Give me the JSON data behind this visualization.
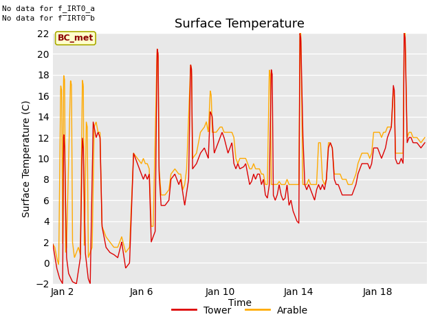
{
  "title": "Surface Temperature",
  "xlabel": "Time",
  "ylabel": "Surface Temperature (C)",
  "ylim": [
    -2,
    22
  ],
  "yticks": [
    -2,
    0,
    2,
    4,
    6,
    8,
    10,
    12,
    14,
    16,
    18,
    20,
    22
  ],
  "xtick_labels": [
    "Jan 2",
    "Jan 6",
    "Jan 10",
    "Jan 14",
    "Jan 18"
  ],
  "xtick_positions": [
    1,
    5,
    9,
    13,
    17
  ],
  "xlim": [
    0.5,
    19.5
  ],
  "no_data_text1": "No data for f_IRT0_a",
  "no_data_text2": "No data for f̅IRT0̅b",
  "bc_met_label": "BC_met",
  "tower_color": "#dd0000",
  "arable_color": "#ffaa00",
  "bg_color": "#e8e8e8",
  "legend_tower": "Tower",
  "legend_arable": "Arable",
  "title_fontsize": 13,
  "axis_fontsize": 10,
  "tick_fontsize": 10,
  "line_width": 1.0,
  "tower_kp": [
    [
      0.5,
      1.8
    ],
    [
      0.7,
      -0.5
    ],
    [
      0.85,
      -1.5
    ],
    [
      1.0,
      -2.0
    ],
    [
      1.05,
      12.5
    ],
    [
      1.1,
      11.0
    ],
    [
      1.2,
      0.5
    ],
    [
      1.3,
      -1.0
    ],
    [
      1.5,
      -1.8
    ],
    [
      1.7,
      -2.0
    ],
    [
      1.9,
      0.5
    ],
    [
      2.0,
      12.0
    ],
    [
      2.05,
      11.0
    ],
    [
      2.15,
      1.0
    ],
    [
      2.3,
      -1.5
    ],
    [
      2.4,
      -2.0
    ],
    [
      2.55,
      13.5
    ],
    [
      2.6,
      13.0
    ],
    [
      2.7,
      12.0
    ],
    [
      2.8,
      12.5
    ],
    [
      2.9,
      12.0
    ],
    [
      3.0,
      3.5
    ],
    [
      3.2,
      1.5
    ],
    [
      3.4,
      1.0
    ],
    [
      3.6,
      0.8
    ],
    [
      3.8,
      0.5
    ],
    [
      4.0,
      2.0
    ],
    [
      4.2,
      -0.5
    ],
    [
      4.4,
      0.0
    ],
    [
      4.6,
      10.5
    ],
    [
      4.7,
      10.0
    ],
    [
      4.8,
      9.5
    ],
    [
      5.0,
      8.5
    ],
    [
      5.1,
      8.0
    ],
    [
      5.2,
      8.5
    ],
    [
      5.3,
      8.0
    ],
    [
      5.4,
      8.5
    ],
    [
      5.5,
      2.0
    ],
    [
      5.6,
      2.5
    ],
    [
      5.7,
      3.0
    ],
    [
      5.8,
      20.5
    ],
    [
      5.85,
      20.0
    ],
    [
      5.9,
      8.5
    ],
    [
      6.0,
      5.5
    ],
    [
      6.2,
      5.5
    ],
    [
      6.4,
      6.0
    ],
    [
      6.5,
      8.0
    ],
    [
      6.7,
      8.5
    ],
    [
      6.9,
      7.5
    ],
    [
      7.0,
      8.0
    ],
    [
      7.2,
      5.5
    ],
    [
      7.4,
      8.0
    ],
    [
      7.5,
      19.0
    ],
    [
      7.55,
      18.5
    ],
    [
      7.6,
      9.0
    ],
    [
      7.8,
      9.5
    ],
    [
      8.0,
      10.5
    ],
    [
      8.2,
      11.0
    ],
    [
      8.4,
      10.0
    ],
    [
      8.5,
      14.5
    ],
    [
      8.6,
      14.0
    ],
    [
      8.7,
      10.5
    ],
    [
      8.9,
      11.5
    ],
    [
      9.0,
      12.0
    ],
    [
      9.1,
      12.5
    ],
    [
      9.2,
      12.0
    ],
    [
      9.4,
      10.5
    ],
    [
      9.5,
      11.0
    ],
    [
      9.6,
      11.5
    ],
    [
      9.7,
      9.5
    ],
    [
      9.8,
      9.0
    ],
    [
      9.9,
      9.5
    ],
    [
      10.0,
      9.0
    ],
    [
      10.2,
      9.2
    ],
    [
      10.3,
      9.5
    ],
    [
      10.4,
      8.5
    ],
    [
      10.5,
      7.5
    ],
    [
      10.6,
      7.8
    ],
    [
      10.7,
      8.5
    ],
    [
      10.8,
      8.0
    ],
    [
      10.9,
      8.5
    ],
    [
      11.0,
      8.5
    ],
    [
      11.1,
      7.5
    ],
    [
      11.2,
      8.0
    ],
    [
      11.3,
      6.5
    ],
    [
      11.4,
      6.2
    ],
    [
      11.5,
      7.5
    ],
    [
      11.6,
      18.5
    ],
    [
      11.65,
      18.0
    ],
    [
      11.7,
      6.5
    ],
    [
      11.8,
      6.0
    ],
    [
      11.9,
      6.5
    ],
    [
      12.0,
      7.5
    ],
    [
      12.1,
      6.5
    ],
    [
      12.2,
      6.0
    ],
    [
      12.3,
      6.2
    ],
    [
      12.4,
      7.5
    ],
    [
      12.5,
      5.5
    ],
    [
      12.6,
      6.0
    ],
    [
      12.7,
      5.0
    ],
    [
      12.8,
      4.5
    ],
    [
      12.9,
      4.0
    ],
    [
      13.0,
      3.8
    ],
    [
      13.05,
      22.0
    ],
    [
      13.1,
      21.5
    ],
    [
      13.2,
      12.5
    ],
    [
      13.3,
      7.5
    ],
    [
      13.4,
      7.0
    ],
    [
      13.5,
      7.5
    ],
    [
      13.6,
      7.0
    ],
    [
      13.7,
      6.5
    ],
    [
      13.8,
      6.0
    ],
    [
      13.9,
      7.0
    ],
    [
      14.0,
      7.5
    ],
    [
      14.1,
      7.0
    ],
    [
      14.2,
      7.5
    ],
    [
      14.3,
      7.0
    ],
    [
      14.4,
      8.0
    ],
    [
      14.5,
      11.0
    ],
    [
      14.6,
      11.5
    ],
    [
      14.7,
      11.0
    ],
    [
      14.8,
      8.0
    ],
    [
      14.9,
      7.5
    ],
    [
      15.0,
      7.5
    ],
    [
      15.1,
      7.0
    ],
    [
      15.2,
      6.5
    ],
    [
      15.3,
      6.5
    ],
    [
      15.4,
      6.5
    ],
    [
      15.5,
      6.5
    ],
    [
      15.6,
      6.5
    ],
    [
      15.7,
      6.5
    ],
    [
      15.8,
      7.0
    ],
    [
      15.9,
      7.5
    ],
    [
      16.0,
      8.5
    ],
    [
      16.1,
      9.0
    ],
    [
      16.2,
      9.5
    ],
    [
      16.3,
      9.5
    ],
    [
      16.4,
      9.5
    ],
    [
      16.5,
      9.5
    ],
    [
      16.6,
      9.0
    ],
    [
      16.7,
      9.5
    ],
    [
      16.8,
      11.0
    ],
    [
      16.9,
      11.0
    ],
    [
      17.0,
      11.0
    ],
    [
      17.1,
      10.5
    ],
    [
      17.2,
      10.0
    ],
    [
      17.3,
      10.5
    ],
    [
      17.4,
      11.0
    ],
    [
      17.5,
      12.0
    ],
    [
      17.6,
      12.5
    ],
    [
      17.7,
      13.0
    ],
    [
      17.8,
      17.0
    ],
    [
      17.85,
      16.5
    ],
    [
      17.9,
      10.0
    ],
    [
      18.0,
      9.5
    ],
    [
      18.1,
      9.5
    ],
    [
      18.2,
      10.0
    ],
    [
      18.3,
      9.5
    ],
    [
      18.35,
      22.0
    ],
    [
      18.4,
      21.5
    ],
    [
      18.5,
      11.5
    ],
    [
      18.6,
      12.0
    ],
    [
      18.7,
      12.0
    ],
    [
      18.8,
      11.5
    ],
    [
      18.9,
      11.5
    ],
    [
      19.0,
      11.5
    ],
    [
      19.2,
      11.0
    ],
    [
      19.4,
      11.5
    ]
  ],
  "arable_kp": [
    [
      0.5,
      1.8
    ],
    [
      0.6,
      1.5
    ],
    [
      0.7,
      0.5
    ],
    [
      0.8,
      -0.2
    ],
    [
      0.9,
      17.0
    ],
    [
      0.95,
      16.5
    ],
    [
      1.0,
      1.5
    ],
    [
      1.05,
      18.0
    ],
    [
      1.1,
      17.5
    ],
    [
      1.15,
      1.0
    ],
    [
      1.2,
      1.5
    ],
    [
      1.4,
      17.5
    ],
    [
      1.45,
      17.0
    ],
    [
      1.5,
      2.0
    ],
    [
      1.6,
      0.5
    ],
    [
      1.7,
      1.0
    ],
    [
      1.8,
      1.5
    ],
    [
      1.9,
      0.8
    ],
    [
      2.0,
      17.5
    ],
    [
      2.05,
      17.0
    ],
    [
      2.1,
      1.0
    ],
    [
      2.2,
      13.5
    ],
    [
      2.25,
      13.0
    ],
    [
      2.3,
      0.5
    ],
    [
      2.4,
      1.0
    ],
    [
      2.5,
      1.5
    ],
    [
      2.6,
      13.0
    ],
    [
      2.7,
      13.5
    ],
    [
      2.8,
      12.5
    ],
    [
      2.9,
      12.5
    ],
    [
      3.0,
      3.5
    ],
    [
      3.2,
      2.5
    ],
    [
      3.4,
      2.0
    ],
    [
      3.6,
      1.5
    ],
    [
      3.8,
      1.5
    ],
    [
      4.0,
      2.5
    ],
    [
      4.2,
      1.0
    ],
    [
      4.4,
      1.5
    ],
    [
      4.6,
      10.5
    ],
    [
      4.8,
      10.0
    ],
    [
      5.0,
      9.5
    ],
    [
      5.1,
      10.0
    ],
    [
      5.2,
      9.5
    ],
    [
      5.3,
      9.5
    ],
    [
      5.4,
      9.0
    ],
    [
      5.5,
      3.5
    ],
    [
      5.6,
      3.5
    ],
    [
      5.8,
      20.5
    ],
    [
      5.85,
      20.0
    ],
    [
      5.9,
      9.0
    ],
    [
      6.0,
      6.5
    ],
    [
      6.2,
      6.5
    ],
    [
      6.4,
      7.0
    ],
    [
      6.5,
      8.5
    ],
    [
      6.7,
      9.0
    ],
    [
      6.9,
      8.5
    ],
    [
      7.0,
      8.5
    ],
    [
      7.1,
      7.0
    ],
    [
      7.2,
      7.5
    ],
    [
      7.3,
      9.0
    ],
    [
      7.5,
      19.0
    ],
    [
      7.55,
      18.5
    ],
    [
      7.6,
      10.0
    ],
    [
      7.8,
      10.5
    ],
    [
      8.0,
      12.5
    ],
    [
      8.2,
      13.0
    ],
    [
      8.3,
      13.5
    ],
    [
      8.4,
      12.5
    ],
    [
      8.5,
      16.5
    ],
    [
      8.55,
      16.0
    ],
    [
      8.6,
      12.5
    ],
    [
      8.8,
      12.5
    ],
    [
      9.0,
      13.0
    ],
    [
      9.1,
      13.0
    ],
    [
      9.2,
      12.5
    ],
    [
      9.3,
      12.5
    ],
    [
      9.4,
      12.5
    ],
    [
      9.5,
      12.5
    ],
    [
      9.6,
      12.5
    ],
    [
      9.7,
      12.0
    ],
    [
      9.8,
      10.0
    ],
    [
      9.9,
      9.5
    ],
    [
      10.0,
      10.0
    ],
    [
      10.2,
      10.0
    ],
    [
      10.3,
      10.0
    ],
    [
      10.4,
      9.5
    ],
    [
      10.5,
      9.0
    ],
    [
      10.6,
      9.0
    ],
    [
      10.7,
      9.5
    ],
    [
      10.8,
      9.0
    ],
    [
      11.0,
      9.0
    ],
    [
      11.1,
      8.5
    ],
    [
      11.2,
      8.5
    ],
    [
      11.3,
      7.5
    ],
    [
      11.4,
      7.5
    ],
    [
      11.5,
      18.5
    ],
    [
      11.55,
      18.0
    ],
    [
      11.6,
      7.5
    ],
    [
      11.7,
      7.5
    ],
    [
      11.8,
      7.5
    ],
    [
      11.9,
      7.5
    ],
    [
      12.0,
      7.8
    ],
    [
      12.1,
      7.5
    ],
    [
      12.2,
      7.5
    ],
    [
      12.3,
      7.5
    ],
    [
      12.4,
      8.0
    ],
    [
      12.5,
      7.5
    ],
    [
      12.6,
      7.5
    ],
    [
      12.7,
      7.5
    ],
    [
      12.8,
      7.5
    ],
    [
      12.9,
      7.5
    ],
    [
      13.0,
      7.5
    ],
    [
      13.05,
      22.5
    ],
    [
      13.1,
      22.0
    ],
    [
      13.2,
      7.5
    ],
    [
      13.3,
      7.5
    ],
    [
      13.4,
      7.5
    ],
    [
      13.5,
      8.0
    ],
    [
      13.6,
      7.5
    ],
    [
      13.7,
      7.5
    ],
    [
      13.8,
      7.5
    ],
    [
      13.9,
      7.5
    ],
    [
      14.0,
      11.5
    ],
    [
      14.1,
      11.5
    ],
    [
      14.2,
      8.0
    ],
    [
      14.3,
      7.5
    ],
    [
      14.4,
      8.0
    ],
    [
      14.5,
      11.5
    ],
    [
      14.6,
      11.5
    ],
    [
      14.7,
      11.0
    ],
    [
      14.8,
      8.5
    ],
    [
      14.9,
      8.5
    ],
    [
      15.0,
      8.5
    ],
    [
      15.1,
      8.5
    ],
    [
      15.2,
      8.0
    ],
    [
      15.3,
      8.0
    ],
    [
      15.4,
      8.0
    ],
    [
      15.5,
      7.5
    ],
    [
      15.6,
      7.5
    ],
    [
      15.7,
      7.5
    ],
    [
      15.8,
      8.0
    ],
    [
      15.9,
      8.5
    ],
    [
      16.0,
      9.5
    ],
    [
      16.1,
      10.0
    ],
    [
      16.2,
      10.5
    ],
    [
      16.3,
      10.5
    ],
    [
      16.4,
      10.5
    ],
    [
      16.5,
      10.5
    ],
    [
      16.6,
      10.0
    ],
    [
      16.7,
      10.5
    ],
    [
      16.8,
      12.5
    ],
    [
      16.9,
      12.5
    ],
    [
      17.0,
      12.5
    ],
    [
      17.1,
      12.5
    ],
    [
      17.2,
      12.0
    ],
    [
      17.3,
      12.5
    ],
    [
      17.4,
      12.5
    ],
    [
      17.5,
      13.0
    ],
    [
      17.6,
      13.0
    ],
    [
      17.7,
      13.0
    ],
    [
      17.8,
      16.5
    ],
    [
      17.85,
      16.0
    ],
    [
      17.9,
      10.5
    ],
    [
      18.0,
      10.5
    ],
    [
      18.1,
      10.5
    ],
    [
      18.2,
      10.5
    ],
    [
      18.3,
      10.5
    ],
    [
      18.35,
      22.5
    ],
    [
      18.4,
      22.0
    ],
    [
      18.5,
      12.0
    ],
    [
      18.6,
      12.5
    ],
    [
      18.7,
      12.5
    ],
    [
      18.8,
      12.0
    ],
    [
      18.9,
      12.0
    ],
    [
      19.0,
      12.0
    ],
    [
      19.2,
      11.5
    ],
    [
      19.4,
      12.0
    ]
  ]
}
